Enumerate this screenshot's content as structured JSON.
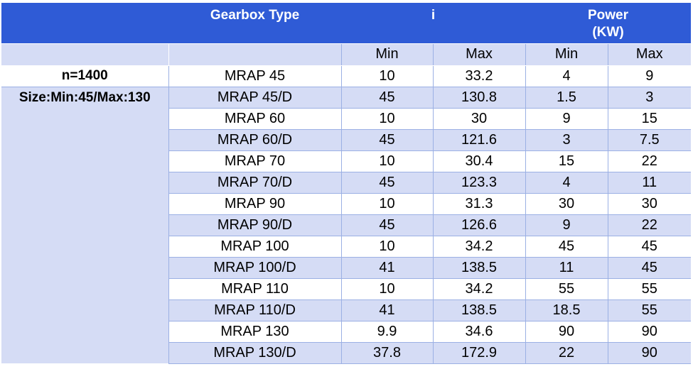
{
  "header": {
    "gearbox_type": "Gearbox Type",
    "i": "i",
    "power_line1": "Power",
    "power_line2": "(KW)"
  },
  "subheader": {
    "i_min": "Min",
    "i_max": "Max",
    "power_min": "Min",
    "power_max": "Max"
  },
  "side_labels": {
    "speed": "n=1400",
    "size": "Size:Min:45/Max:130"
  },
  "rows": [
    {
      "type": "MRAP 45",
      "i_min": "10",
      "i_max": "33.2",
      "p_min": "4",
      "p_max": "9"
    },
    {
      "type": "MRAP 45/D",
      "i_min": "45",
      "i_max": "130.8",
      "p_min": "1.5",
      "p_max": "3"
    },
    {
      "type": "MRAP 60",
      "i_min": "10",
      "i_max": "30",
      "p_min": "9",
      "p_max": "15"
    },
    {
      "type": "MRAP 60/D",
      "i_min": "45",
      "i_max": "121.6",
      "p_min": "3",
      "p_max": "7.5"
    },
    {
      "type": "MRAP 70",
      "i_min": "10",
      "i_max": "30.4",
      "p_min": "15",
      "p_max": "22"
    },
    {
      "type": "MRAP 70/D",
      "i_min": "45",
      "i_max": "123.3",
      "p_min": "4",
      "p_max": "11"
    },
    {
      "type": "MRAP 90",
      "i_min": "10",
      "i_max": "31.3",
      "p_min": "30",
      "p_max": "30"
    },
    {
      "type": "MRAP 90/D",
      "i_min": "45",
      "i_max": "126.6",
      "p_min": "9",
      "p_max": "22"
    },
    {
      "type": "MRAP 100",
      "i_min": "10",
      "i_max": "34.2",
      "p_min": "45",
      "p_max": "45"
    },
    {
      "type": "MRAP 100/D",
      "i_min": "41",
      "i_max": "138.5",
      "p_min": "11",
      "p_max": "45"
    },
    {
      "type": "MRAP 110",
      "i_min": "10",
      "i_max": "34.2",
      "p_min": "55",
      "p_max": "55"
    },
    {
      "type": "MRAP 110/D",
      "i_min": "41",
      "i_max": "138.5",
      "p_min": "18.5",
      "p_max": "55"
    },
    {
      "type": "MRAP 130",
      "i_min": "9.9",
      "i_max": "34.6",
      "p_min": "90",
      "p_max": "90"
    },
    {
      "type": "MRAP 130/D",
      "i_min": "37.8",
      "i_max": "172.9",
      "p_min": "22",
      "p_max": "90"
    }
  ],
  "colors": {
    "header_bg": "#2f5bd6",
    "band_bg": "#d5dcf5",
    "grid": "#9bb0e4"
  }
}
